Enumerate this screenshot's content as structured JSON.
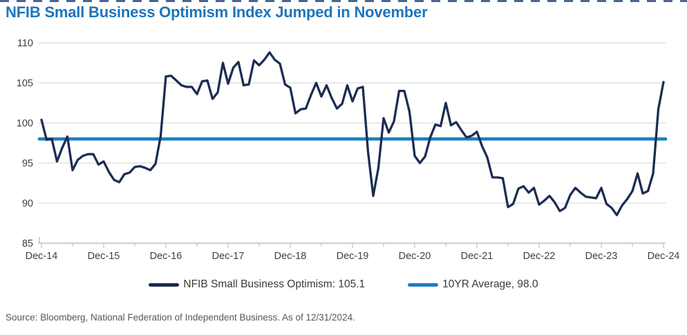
{
  "page": {
    "title": "NFIB Small Business Optimism Index Jumped in November",
    "source": "Source: Bloomberg, National Federation of Independent Business. As of 12/31/2024."
  },
  "colors": {
    "title_blue": "#1C75BC",
    "series_navy": "#1B2D52",
    "series_light_blue": "#1B7EC2",
    "gridline": "#DCDCDC",
    "axis_line": "#B5B5B5",
    "axis_text": "#3F3F3F",
    "top_border_navy": "#2B4A7D"
  },
  "chart_data": {
    "type": "line",
    "title": "NFIB Small Business Optimism Index Jumped in November",
    "xlabel": "",
    "ylabel": "",
    "ylim": [
      85,
      110
    ],
    "y_ticks": [
      85,
      90,
      95,
      100,
      105,
      110
    ],
    "grid": "horizontal",
    "legend_position": "bottom",
    "x_start": "Dec-14",
    "x_frequency": "monthly",
    "x_tick_labels": [
      "Dec-14",
      "Dec-15",
      "Dec-16",
      "Dec-17",
      "Dec-18",
      "Dec-19",
      "Dec-20",
      "Dec-21",
      "Dec-22",
      "Dec-23",
      "Dec-24"
    ],
    "legend_labels": [
      "NFIB Small Business Optimism: 105.1",
      "10YR Average, 98.0"
    ],
    "series": [
      {
        "name": "NFIB Small Business Optimism",
        "latest_value": 105.1,
        "color": "#1B2D52",
        "values": [
          100.4,
          97.9,
          98.0,
          95.2,
          96.9,
          98.3,
          94.1,
          95.4,
          95.9,
          96.1,
          96.1,
          94.8,
          95.2,
          93.9,
          92.9,
          92.6,
          93.6,
          93.8,
          94.5,
          94.6,
          94.4,
          94.1,
          94.9,
          98.4,
          105.8,
          105.9,
          105.3,
          104.7,
          104.5,
          104.5,
          103.6,
          105.2,
          105.3,
          103.0,
          103.8,
          107.5,
          104.9,
          106.9,
          107.6,
          104.7,
          104.8,
          107.8,
          107.2,
          107.9,
          108.8,
          107.9,
          107.4,
          104.8,
          104.4,
          101.2,
          101.7,
          101.8,
          103.5,
          105.0,
          103.3,
          104.7,
          103.1,
          101.8,
          102.4,
          104.7,
          102.7,
          104.3,
          104.5,
          96.4,
          90.9,
          94.4,
          100.6,
          98.8,
          100.2,
          104.0,
          104.0,
          101.4,
          95.9,
          95.0,
          95.8,
          98.2,
          99.8,
          99.6,
          102.5,
          99.7,
          100.1,
          99.1,
          98.2,
          98.4,
          98.9,
          97.1,
          95.7,
          93.2,
          93.2,
          93.1,
          89.5,
          89.9,
          91.8,
          92.1,
          91.3,
          91.9,
          89.8,
          90.3,
          90.9,
          90.1,
          89.0,
          89.4,
          91.0,
          91.9,
          91.3,
          90.8,
          90.7,
          90.6,
          91.9,
          89.9,
          89.4,
          88.5,
          89.7,
          90.5,
          91.5,
          93.7,
          91.2,
          91.5,
          93.7,
          101.7,
          105.1
        ]
      },
      {
        "name": "10YR Average",
        "type": "constant",
        "value": 98.0,
        "color": "#1B7EC2"
      }
    ]
  }
}
